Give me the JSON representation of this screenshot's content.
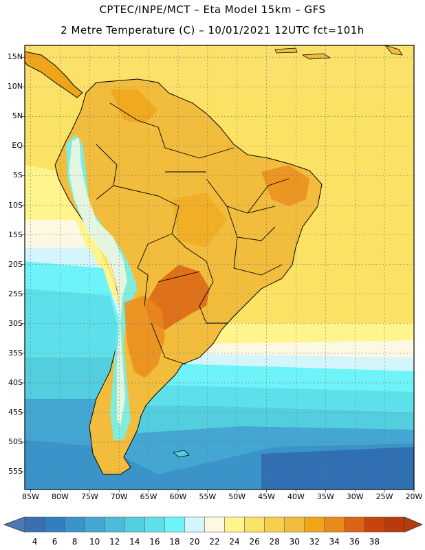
{
  "header": {
    "line1": "CPTEC/INPE/MCT –  Eta Model 15km – GFS",
    "line2": "2 Metre Temperature (C) – 10/01/2021 12UTC fct=101h"
  },
  "axes": {
    "lat_labels": [
      "15N",
      "10N",
      "5N",
      "EQ",
      "5S",
      "10S",
      "15S",
      "20S",
      "25S",
      "30S",
      "35S",
      "40S",
      "45S",
      "50S",
      "55S"
    ],
    "lat_values": [
      15,
      10,
      5,
      0,
      -5,
      -10,
      -15,
      -20,
      -25,
      -30,
      -35,
      -40,
      -45,
      -50,
      -55
    ],
    "lon_labels": [
      "85W",
      "80W",
      "75W",
      "70W",
      "65W",
      "60W",
      "55W",
      "50W",
      "45W",
      "40W",
      "35W",
      "30W",
      "25W",
      "20W"
    ],
    "lon_values": [
      -85,
      -80,
      -75,
      -70,
      -65,
      -60,
      -55,
      -50,
      -45,
      -40,
      -35,
      -30,
      -25,
      -20
    ],
    "lat_range": [
      -58,
      17
    ],
    "lon_range": [
      -86,
      -20
    ]
  },
  "colorbar": {
    "labels": [
      "4",
      "6",
      "8",
      "10",
      "12",
      "14",
      "16",
      "18",
      "20",
      "22",
      "24",
      "26",
      "28",
      "30",
      "32",
      "34",
      "36",
      "38"
    ],
    "colors": [
      "#3a6fb2",
      "#2f7fc1",
      "#3a94c9",
      "#44a6d3",
      "#4cbad8",
      "#52cede",
      "#5ee0ea",
      "#6ef4f8",
      "#d4f5fb",
      "#fdf8e2",
      "#fff58c",
      "#fbe264",
      "#f7cf4d",
      "#f2bc3c",
      "#f0a519",
      "#e88a1a",
      "#dc6414",
      "#c8430e",
      "#b83a0e"
    ],
    "under_color": "#4a78b8",
    "over_color": "#b83a0e"
  }
}
